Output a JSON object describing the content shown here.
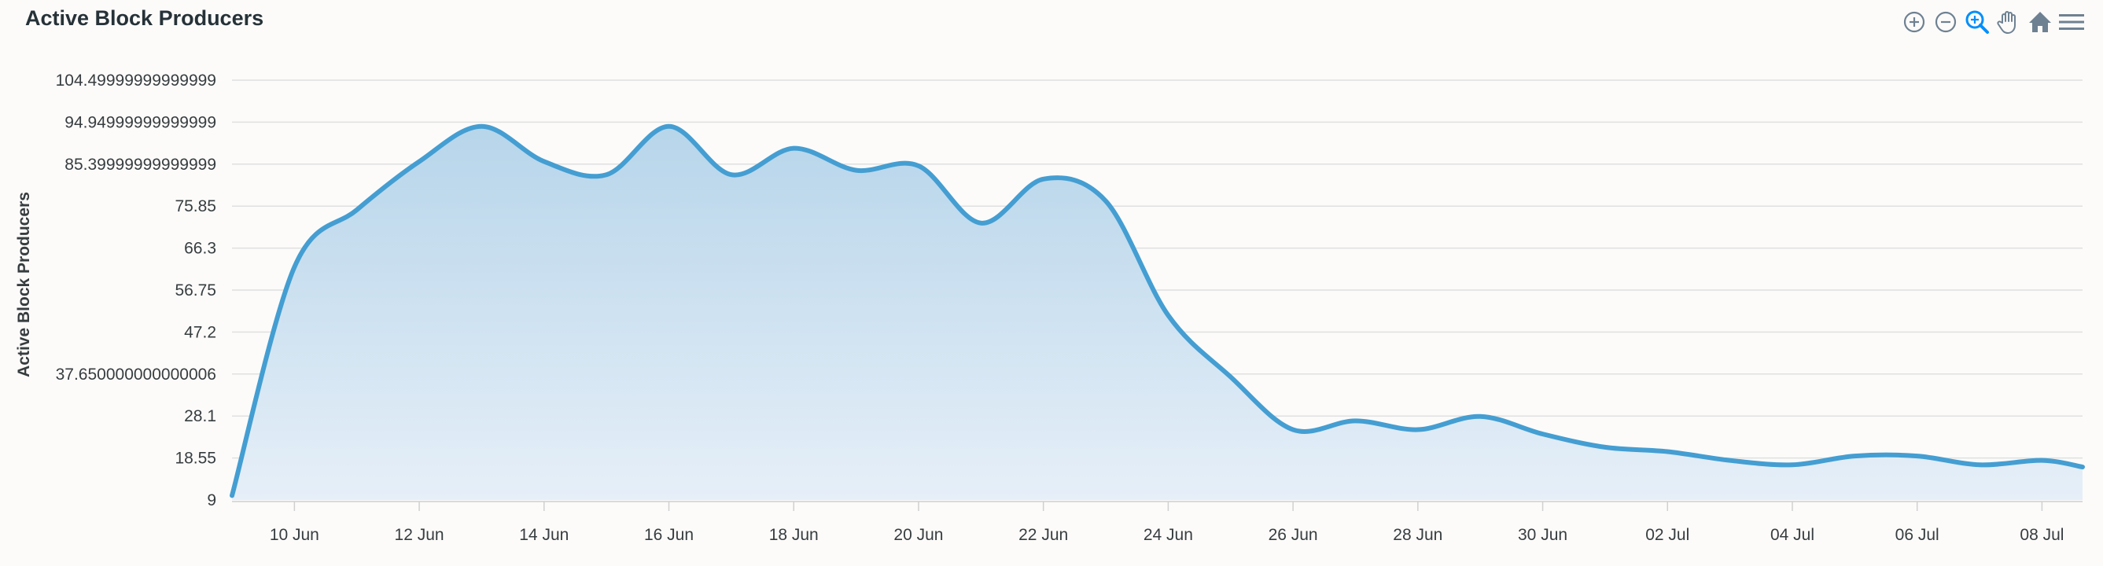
{
  "chart_data": {
    "type": "area",
    "title": "Active Block Producers",
    "xlabel": "",
    "ylabel": "Active Block Producers",
    "ylim": [
      9,
      104.49999999999999
    ],
    "y_tick_labels": [
      "9",
      "18.55",
      "28.1",
      "37.650000000000006",
      "47.2",
      "56.75",
      "66.3",
      "75.85",
      "85.39999999999999",
      "94.94999999999999",
      "104.49999999999999"
    ],
    "x_tick_labels": [
      "10 Jun",
      "12 Jun",
      "14 Jun",
      "16 Jun",
      "18 Jun",
      "20 Jun",
      "22 Jun",
      "24 Jun",
      "26 Jun",
      "28 Jun",
      "30 Jun",
      "02 Jul",
      "04 Jul",
      "06 Jul",
      "08 Jul"
    ],
    "x_tick_days": [
      1,
      3,
      5,
      7,
      9,
      11,
      13,
      15,
      17,
      19,
      21,
      23,
      25,
      27,
      29
    ],
    "x_dates": [
      "09 Jun",
      "10 Jun",
      "11 Jun",
      "12 Jun",
      "13 Jun",
      "14 Jun",
      "15 Jun",
      "16 Jun",
      "17 Jun",
      "18 Jun",
      "19 Jun",
      "20 Jun",
      "21 Jun",
      "22 Jun",
      "23 Jun",
      "24 Jun",
      "25 Jun",
      "26 Jun",
      "27 Jun",
      "28 Jun",
      "29 Jun",
      "30 Jun",
      "01 Jul",
      "02 Jul",
      "03 Jul",
      "04 Jul",
      "05 Jul",
      "06 Jul",
      "07 Jul",
      "08 Jul",
      "09 Jul"
    ],
    "x_days": [
      0,
      1,
      2,
      3,
      4,
      5,
      6,
      7,
      8,
      9,
      10,
      11,
      12,
      13,
      14,
      15,
      16,
      17,
      18,
      19,
      20,
      21,
      22,
      23,
      24,
      25,
      26,
      27,
      28,
      29,
      29.65
    ],
    "series": [
      {
        "values": [
          10,
          62,
          75,
          86,
          94,
          86,
          83,
          94,
          83,
          89,
          84,
          85,
          72,
          82,
          77,
          51,
          37,
          25,
          27,
          25,
          28,
          24,
          21,
          20,
          18,
          17,
          19,
          19,
          17,
          18,
          16.5
        ]
      }
    ],
    "grid": true,
    "colors": {
      "line": "#449ed2",
      "area_top": "#b7d5ea",
      "area_bottom": "#e6eff8",
      "grid": "#e0e0e0",
      "axis": "#d0d0d0"
    }
  },
  "toolbar": {
    "icons": [
      "zoom-in-icon",
      "zoom-out-icon",
      "selection-zoom-icon",
      "pan-hand-icon",
      "reset-home-icon",
      "menu-icon"
    ]
  }
}
